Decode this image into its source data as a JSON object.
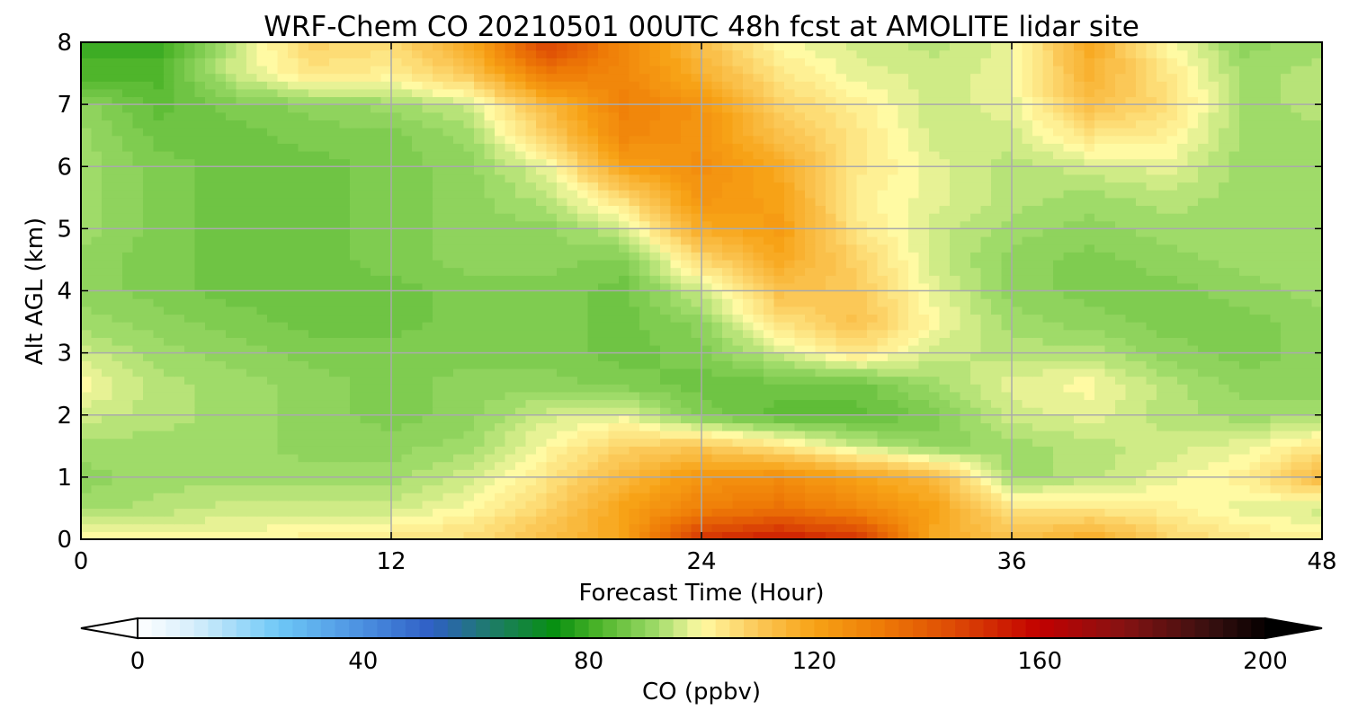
{
  "chart_data": {
    "type": "heatmap",
    "title": "WRF-Chem CO  20210501 00UTC 48h fcst at AMOLITE lidar site",
    "xlabel": "Forecast Time (Hour)",
    "ylabel": "Alt AGL (km)",
    "xlim": [
      0,
      48
    ],
    "ylim": [
      0,
      8
    ],
    "x_ticks": [
      0,
      12,
      24,
      36,
      48
    ],
    "y_ticks": [
      0,
      1,
      2,
      3,
      4,
      5,
      6,
      7,
      8
    ],
    "grid": true,
    "x_hours": [
      0,
      3,
      6,
      9,
      12,
      15,
      18,
      21,
      24,
      27,
      30,
      33,
      36,
      39,
      42,
      45,
      48
    ],
    "y_km": [
      0,
      0.5,
      1,
      1.5,
      2,
      2.5,
      3,
      3.5,
      4,
      4.5,
      5,
      5.5,
      6,
      6.5,
      7,
      7.5,
      8
    ],
    "z_ppbv": [
      [
        100,
        100,
        100,
        102,
        104,
        106,
        112,
        120,
        150,
        155,
        150,
        118,
        112,
        118,
        108,
        104,
        102
      ],
      [
        92,
        94,
        96,
        96,
        96,
        100,
        108,
        120,
        130,
        134,
        128,
        120,
        104,
        104,
        102,
        98,
        96
      ],
      [
        90,
        92,
        92,
        92,
        92,
        96,
        104,
        114,
        124,
        126,
        120,
        114,
        92,
        94,
        98,
        102,
        114
      ],
      [
        92,
        92,
        92,
        90,
        90,
        92,
        100,
        108,
        110,
        104,
        96,
        90,
        92,
        94,
        96,
        98,
        104
      ],
      [
        96,
        94,
        92,
        90,
        88,
        90,
        96,
        98,
        88,
        84,
        84,
        88,
        96,
        98,
        94,
        92,
        92
      ],
      [
        100,
        94,
        92,
        90,
        88,
        90,
        90,
        88,
        86,
        86,
        86,
        92,
        98,
        100,
        94,
        90,
        90
      ],
      [
        96,
        92,
        90,
        88,
        88,
        88,
        88,
        86,
        88,
        96,
        104,
        96,
        94,
        94,
        90,
        88,
        90
      ],
      [
        92,
        90,
        88,
        86,
        86,
        88,
        88,
        86,
        90,
        104,
        112,
        100,
        92,
        90,
        88,
        88,
        90
      ],
      [
        90,
        88,
        86,
        86,
        86,
        88,
        88,
        86,
        96,
        112,
        110,
        98,
        90,
        88,
        88,
        90,
        92
      ],
      [
        90,
        88,
        86,
        86,
        88,
        90,
        90,
        88,
        106,
        118,
        108,
        96,
        90,
        88,
        90,
        92,
        92
      ],
      [
        92,
        88,
        86,
        86,
        88,
        90,
        90,
        96,
        118,
        122,
        104,
        96,
        92,
        90,
        92,
        92,
        92
      ],
      [
        92,
        88,
        86,
        86,
        88,
        90,
        94,
        106,
        124,
        120,
        102,
        98,
        94,
        92,
        94,
        92,
        92
      ],
      [
        92,
        88,
        86,
        86,
        88,
        90,
        98,
        120,
        126,
        118,
        104,
        98,
        94,
        96,
        98,
        92,
        92
      ],
      [
        92,
        86,
        86,
        88,
        88,
        92,
        108,
        128,
        124,
        112,
        104,
        96,
        96,
        104,
        102,
        92,
        92
      ],
      [
        90,
        84,
        88,
        90,
        92,
        96,
        114,
        130,
        124,
        108,
        102,
        96,
        98,
        112,
        106,
        92,
        94
      ],
      [
        82,
        82,
        96,
        104,
        102,
        110,
        132,
        128,
        116,
        104,
        98,
        96,
        98,
        116,
        104,
        92,
        94
      ],
      [
        80,
        80,
        96,
        108,
        106,
        118,
        148,
        128,
        112,
        100,
        96,
        94,
        98,
        118,
        100,
        90,
        92
      ]
    ],
    "colorbar": {
      "label": "CO  (ppbv)",
      "ticks": [
        0,
        40,
        80,
        120,
        160,
        200
      ],
      "min": 0,
      "max": 200,
      "extend": "both",
      "stops": [
        {
          "v": 0,
          "c": "#ffffff"
        },
        {
          "v": 10,
          "c": "#d6eefb"
        },
        {
          "v": 25,
          "c": "#6ec8f7"
        },
        {
          "v": 40,
          "c": "#4b8fe0"
        },
        {
          "v": 52,
          "c": "#2f5fc5"
        },
        {
          "v": 62,
          "c": "#1f7a6f"
        },
        {
          "v": 74,
          "c": "#089010"
        },
        {
          "v": 82,
          "c": "#4fb52b"
        },
        {
          "v": 92,
          "c": "#9fdb69"
        },
        {
          "v": 100,
          "c": "#fffaa3"
        },
        {
          "v": 110,
          "c": "#fbc857"
        },
        {
          "v": 120,
          "c": "#f7a216"
        },
        {
          "v": 132,
          "c": "#ee7a06"
        },
        {
          "v": 145,
          "c": "#dd4905"
        },
        {
          "v": 160,
          "c": "#c20000"
        },
        {
          "v": 175,
          "c": "#851212"
        },
        {
          "v": 190,
          "c": "#391010"
        },
        {
          "v": 200,
          "c": "#050000"
        }
      ]
    }
  }
}
